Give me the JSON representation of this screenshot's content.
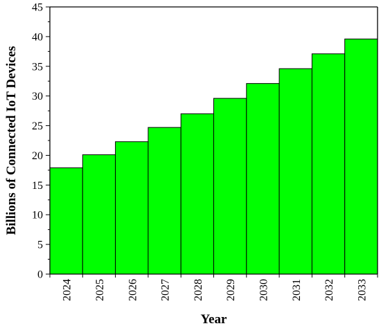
{
  "chart_data": {
    "type": "bar",
    "title": "",
    "xlabel": "Year",
    "ylabel": "Billions of Connected IoT Devices",
    "categories": [
      "2024",
      "2025",
      "2026",
      "2027",
      "2028",
      "2029",
      "2030",
      "2031",
      "2032",
      "2033"
    ],
    "values": [
      17.9,
      20.1,
      22.3,
      24.7,
      27.0,
      29.6,
      32.1,
      34.6,
      37.1,
      39.6
    ],
    "ylim": [
      0,
      45
    ],
    "yticks": [
      "0",
      "5",
      "10",
      "15",
      "20",
      "25",
      "30",
      "35",
      "40",
      "45"
    ],
    "grid": false,
    "legend": "none",
    "bar_color": "#00ff00",
    "edge_color": "#000000"
  }
}
